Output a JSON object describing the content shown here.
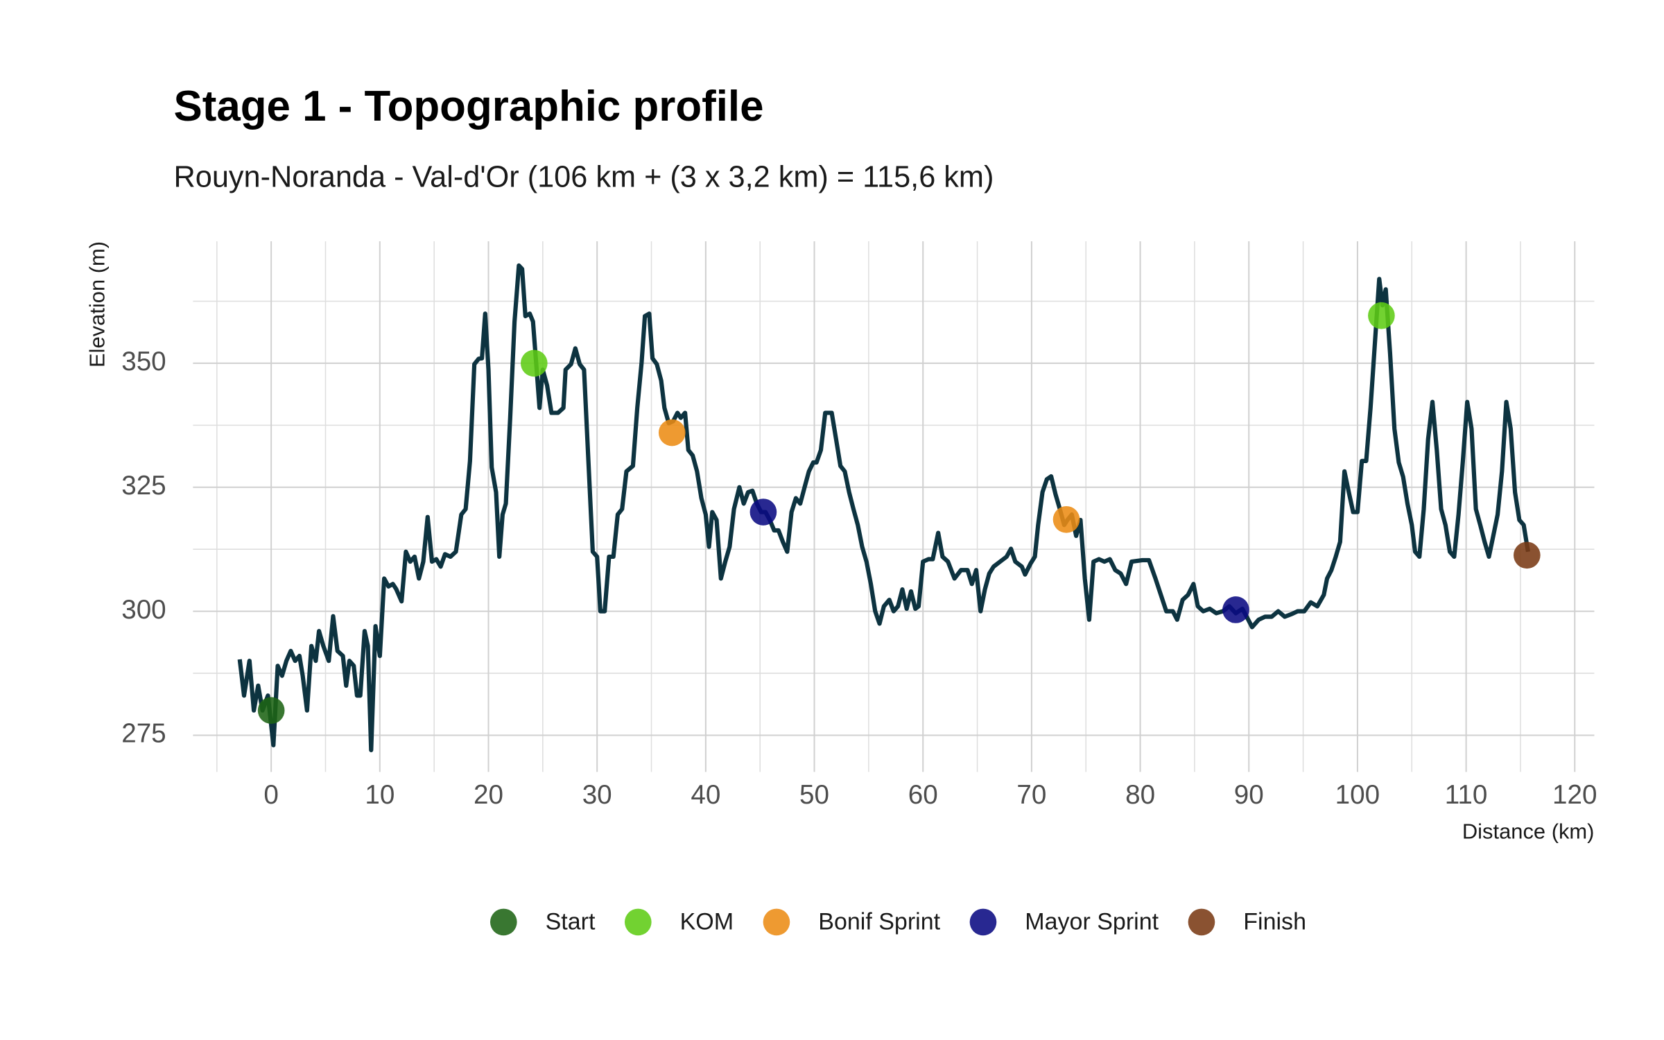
{
  "chart_data": {
    "type": "line",
    "title": "Stage 1 - Topographic profile",
    "subtitle": "Rouyn-Noranda - Val-d'Or (106 km + (3 x 3,2 km) = 115,6 km)",
    "xlabel": "Distance (km)",
    "ylabel": "Elevation (m)",
    "xlim": [
      -7.2,
      121.8
    ],
    "ylim": [
      267.6,
      374.6
    ],
    "xticks": [
      0,
      10,
      20,
      30,
      40,
      50,
      60,
      70,
      80,
      90,
      100,
      110,
      120
    ],
    "yticks": [
      275,
      300,
      325,
      350
    ],
    "xminorticks": [
      -5,
      5,
      15,
      25,
      35,
      45,
      55,
      65,
      75,
      85,
      95,
      105,
      115
    ],
    "yminorticks": [
      287.5,
      312.5,
      337.5,
      362.5
    ],
    "grid": true,
    "profile": {
      "color": "#0d3340",
      "x": [
        -2.9,
        -2.5,
        -2,
        -1.6,
        -1.2,
        -0.8,
        -0.3,
        0.2,
        0.6,
        1,
        1.4,
        1.8,
        2.2,
        2.6,
        2.9,
        3.3,
        3.7,
        4.1,
        4.4,
        4.8,
        5.3,
        5.7,
        6.1,
        6.6,
        6.9,
        7.2,
        7.6,
        7.9,
        8.2,
        8.6,
        8.9,
        9.2,
        9.6,
        10,
        10.4,
        10.8,
        11.2,
        11.5,
        12,
        12.4,
        12.8,
        13.2,
        13.6,
        14,
        14.4,
        14.8,
        15.2,
        15.6,
        16,
        16.5,
        17,
        17.5,
        17.9,
        18.3,
        18.7,
        19.1,
        19.4,
        19.7,
        20,
        20.3,
        20.7,
        21,
        21.3,
        21.6,
        22,
        22.4,
        22.8,
        23.1,
        23.4,
        23.8,
        24.1,
        24.4,
        24.7,
        25,
        25.4,
        25.8,
        26.4,
        26.9,
        27.1,
        27.6,
        28,
        28.4,
        28.8,
        29.2,
        29.6,
        30,
        30.3,
        30.7,
        31.1,
        31.5,
        31.9,
        32.3,
        32.7,
        33.3,
        33.7,
        34.1,
        34.4,
        34.8,
        35.1,
        35.5,
        35.9,
        36.2,
        36.6,
        37,
        37.4,
        37.7,
        38.1,
        38.4,
        38.8,
        39.2,
        39.6,
        40,
        40.3,
        40.6,
        41,
        41.4,
        41.8,
        42.2,
        42.6,
        43.1,
        43.5,
        43.9,
        44.3,
        44.7,
        45.1,
        45.5,
        45.9,
        46.3,
        46.7,
        47.1,
        47.5,
        47.9,
        48.3,
        48.7,
        49.1,
        49.5,
        49.9,
        50.2,
        50.6,
        51,
        51.6,
        52,
        52.4,
        52.8,
        53.2,
        53.6,
        54,
        54.4,
        54.8,
        55.2,
        55.6,
        56,
        56.4,
        56.9,
        57.3,
        57.7,
        58.1,
        58.5,
        58.9,
        59.3,
        59.6,
        60,
        60.5,
        60.9,
        61.4,
        61.8,
        62.3,
        62.9,
        63.5,
        64.1,
        64.5,
        64.9,
        65.3,
        65.7,
        66.1,
        66.5,
        67.1,
        67.7,
        68.1,
        68.5,
        69.1,
        69.4,
        69.9,
        70.3,
        70.6,
        71,
        71.4,
        71.8,
        72.2,
        72.6,
        73,
        73.3,
        73.7,
        74.1,
        74.5,
        74.9,
        75.3,
        75.7,
        76.2,
        76.7,
        77.2,
        77.7,
        78.2,
        78.7,
        79.2,
        80.2,
        80.8,
        81.4,
        81.9,
        82.4,
        83,
        83.4,
        83.9,
        84.4,
        84.9,
        85.3,
        85.8,
        86.4,
        87,
        87.6,
        88.2,
        88.8,
        89.4,
        89.8,
        90.3,
        90.9,
        91.5,
        92.1,
        92.7,
        93.3,
        93.9,
        94.5,
        95.1,
        95.7,
        96.3,
        96.9,
        97.2,
        97.6,
        98,
        98.4,
        98.8,
        99.2,
        99.6,
        100,
        100.4,
        100.8,
        101.2,
        101.6,
        102,
        102.3,
        102.6,
        103,
        103.4,
        103.8,
        104.2,
        104.6,
        105,
        105.3,
        105.7,
        106.1,
        106.5,
        106.9,
        107.3,
        107.7,
        108.1,
        108.5,
        108.9,
        109.3,
        109.7,
        110.1,
        110.5,
        110.9,
        111.3,
        111.7,
        112.1,
        112.5,
        112.9,
        113.3,
        113.7,
        114.1,
        114.5,
        114.9,
        115.3,
        115.7
      ],
      "values": [
        290.3,
        283,
        290,
        280,
        285,
        280,
        283,
        273,
        289,
        287,
        290,
        292,
        290,
        291,
        287,
        280,
        293,
        290,
        296,
        293,
        290,
        299,
        292,
        291,
        285,
        290,
        289,
        283,
        283,
        296,
        293,
        272,
        297,
        291,
        306.6,
        305,
        305.5,
        304.5,
        302,
        312,
        310,
        311,
        306.6,
        310,
        319,
        310,
        310.5,
        309,
        311.5,
        311,
        312,
        319.5,
        320.6,
        330.3,
        349.8,
        350.9,
        351,
        360,
        348.7,
        329,
        324,
        311,
        319.5,
        321.7,
        339,
        358.4,
        369.7,
        369,
        359.5,
        360,
        358.4,
        349.8,
        341,
        348.7,
        345.5,
        340,
        340,
        341,
        348.7,
        349.8,
        353,
        349.8,
        348.7,
        330.3,
        312,
        311,
        300,
        300,
        311,
        311,
        319.5,
        320.6,
        328.2,
        329.3,
        341,
        350.2,
        359.5,
        360,
        351,
        349.8,
        346.5,
        341,
        337.9,
        338.3,
        340,
        339,
        340,
        332.5,
        331.4,
        328.2,
        322.8,
        319.5,
        313,
        320,
        318.4,
        306.6,
        310,
        313,
        320.6,
        325,
        321.7,
        324,
        324.3,
        321.7,
        320,
        320,
        318.4,
        316.3,
        316.3,
        314,
        312,
        320,
        322.8,
        321.7,
        325,
        328.2,
        330,
        330,
        332.5,
        340,
        340,
        334.7,
        329.3,
        328.2,
        324,
        320.6,
        317.4,
        313,
        310,
        305.5,
        300,
        297.5,
        301,
        302.3,
        300,
        301,
        304.4,
        300.5,
        304,
        300.5,
        301,
        310,
        310.5,
        310.5,
        315.8,
        311,
        310,
        306.6,
        308.3,
        308.3,
        305.5,
        308.3,
        300,
        304.4,
        307.6,
        309,
        310,
        311,
        312.6,
        310,
        309,
        307.4,
        309.6,
        311,
        317.4,
        324,
        326.6,
        327.2,
        323.6,
        320.6,
        317.4,
        318.4,
        319.5,
        315.2,
        318.4,
        306.6,
        298.3,
        310,
        310.5,
        310,
        310.5,
        308.3,
        307.6,
        305.5,
        310,
        310.3,
        310.3,
        306.6,
        303.3,
        300,
        300,
        298.3,
        302.3,
        303.3,
        305.5,
        301,
        300,
        300.5,
        299.6,
        300,
        301,
        299.6,
        300.5,
        298.9,
        296.8,
        298.3,
        298.9,
        298.9,
        300,
        298.9,
        299.4,
        300,
        300,
        301.8,
        301,
        303.3,
        306.6,
        308.3,
        311,
        314,
        328.2,
        324,
        320,
        320,
        330.3,
        330.3,
        341,
        354,
        367,
        361.7,
        364.9,
        352,
        336.8,
        330,
        327.1,
        321.7,
        317.4,
        312,
        311,
        320.6,
        334.7,
        342.2,
        332.5,
        320.6,
        317.4,
        312,
        311,
        319.5,
        330.3,
        342.2,
        336.8,
        320.6,
        317.4,
        314,
        311,
        315.2,
        319.5,
        328.2,
        342.2,
        336.8,
        324,
        318.4,
        317.4,
        312
      ]
    },
    "markers": [
      {
        "name": "Start",
        "color": "#1e6414",
        "x": [
          0
        ],
        "values": [
          280
        ]
      },
      {
        "name": "KOM",
        "color": "#5ecc14",
        "x": [
          24.2,
          102.2
        ],
        "values": [
          350,
          359.6
        ]
      },
      {
        "name": "Bonif Sprint",
        "color": "#ec8c14",
        "x": [
          36.9,
          73.2
        ],
        "values": [
          336,
          318.5
        ]
      },
      {
        "name": "Mayor Sprint",
        "color": "#0a0a82",
        "x": [
          45.3,
          88.8
        ],
        "values": [
          320,
          300.3
        ]
      },
      {
        "name": "Finish",
        "color": "#7a3a14",
        "x": [
          115.6
        ],
        "values": [
          311.3
        ]
      }
    ]
  }
}
